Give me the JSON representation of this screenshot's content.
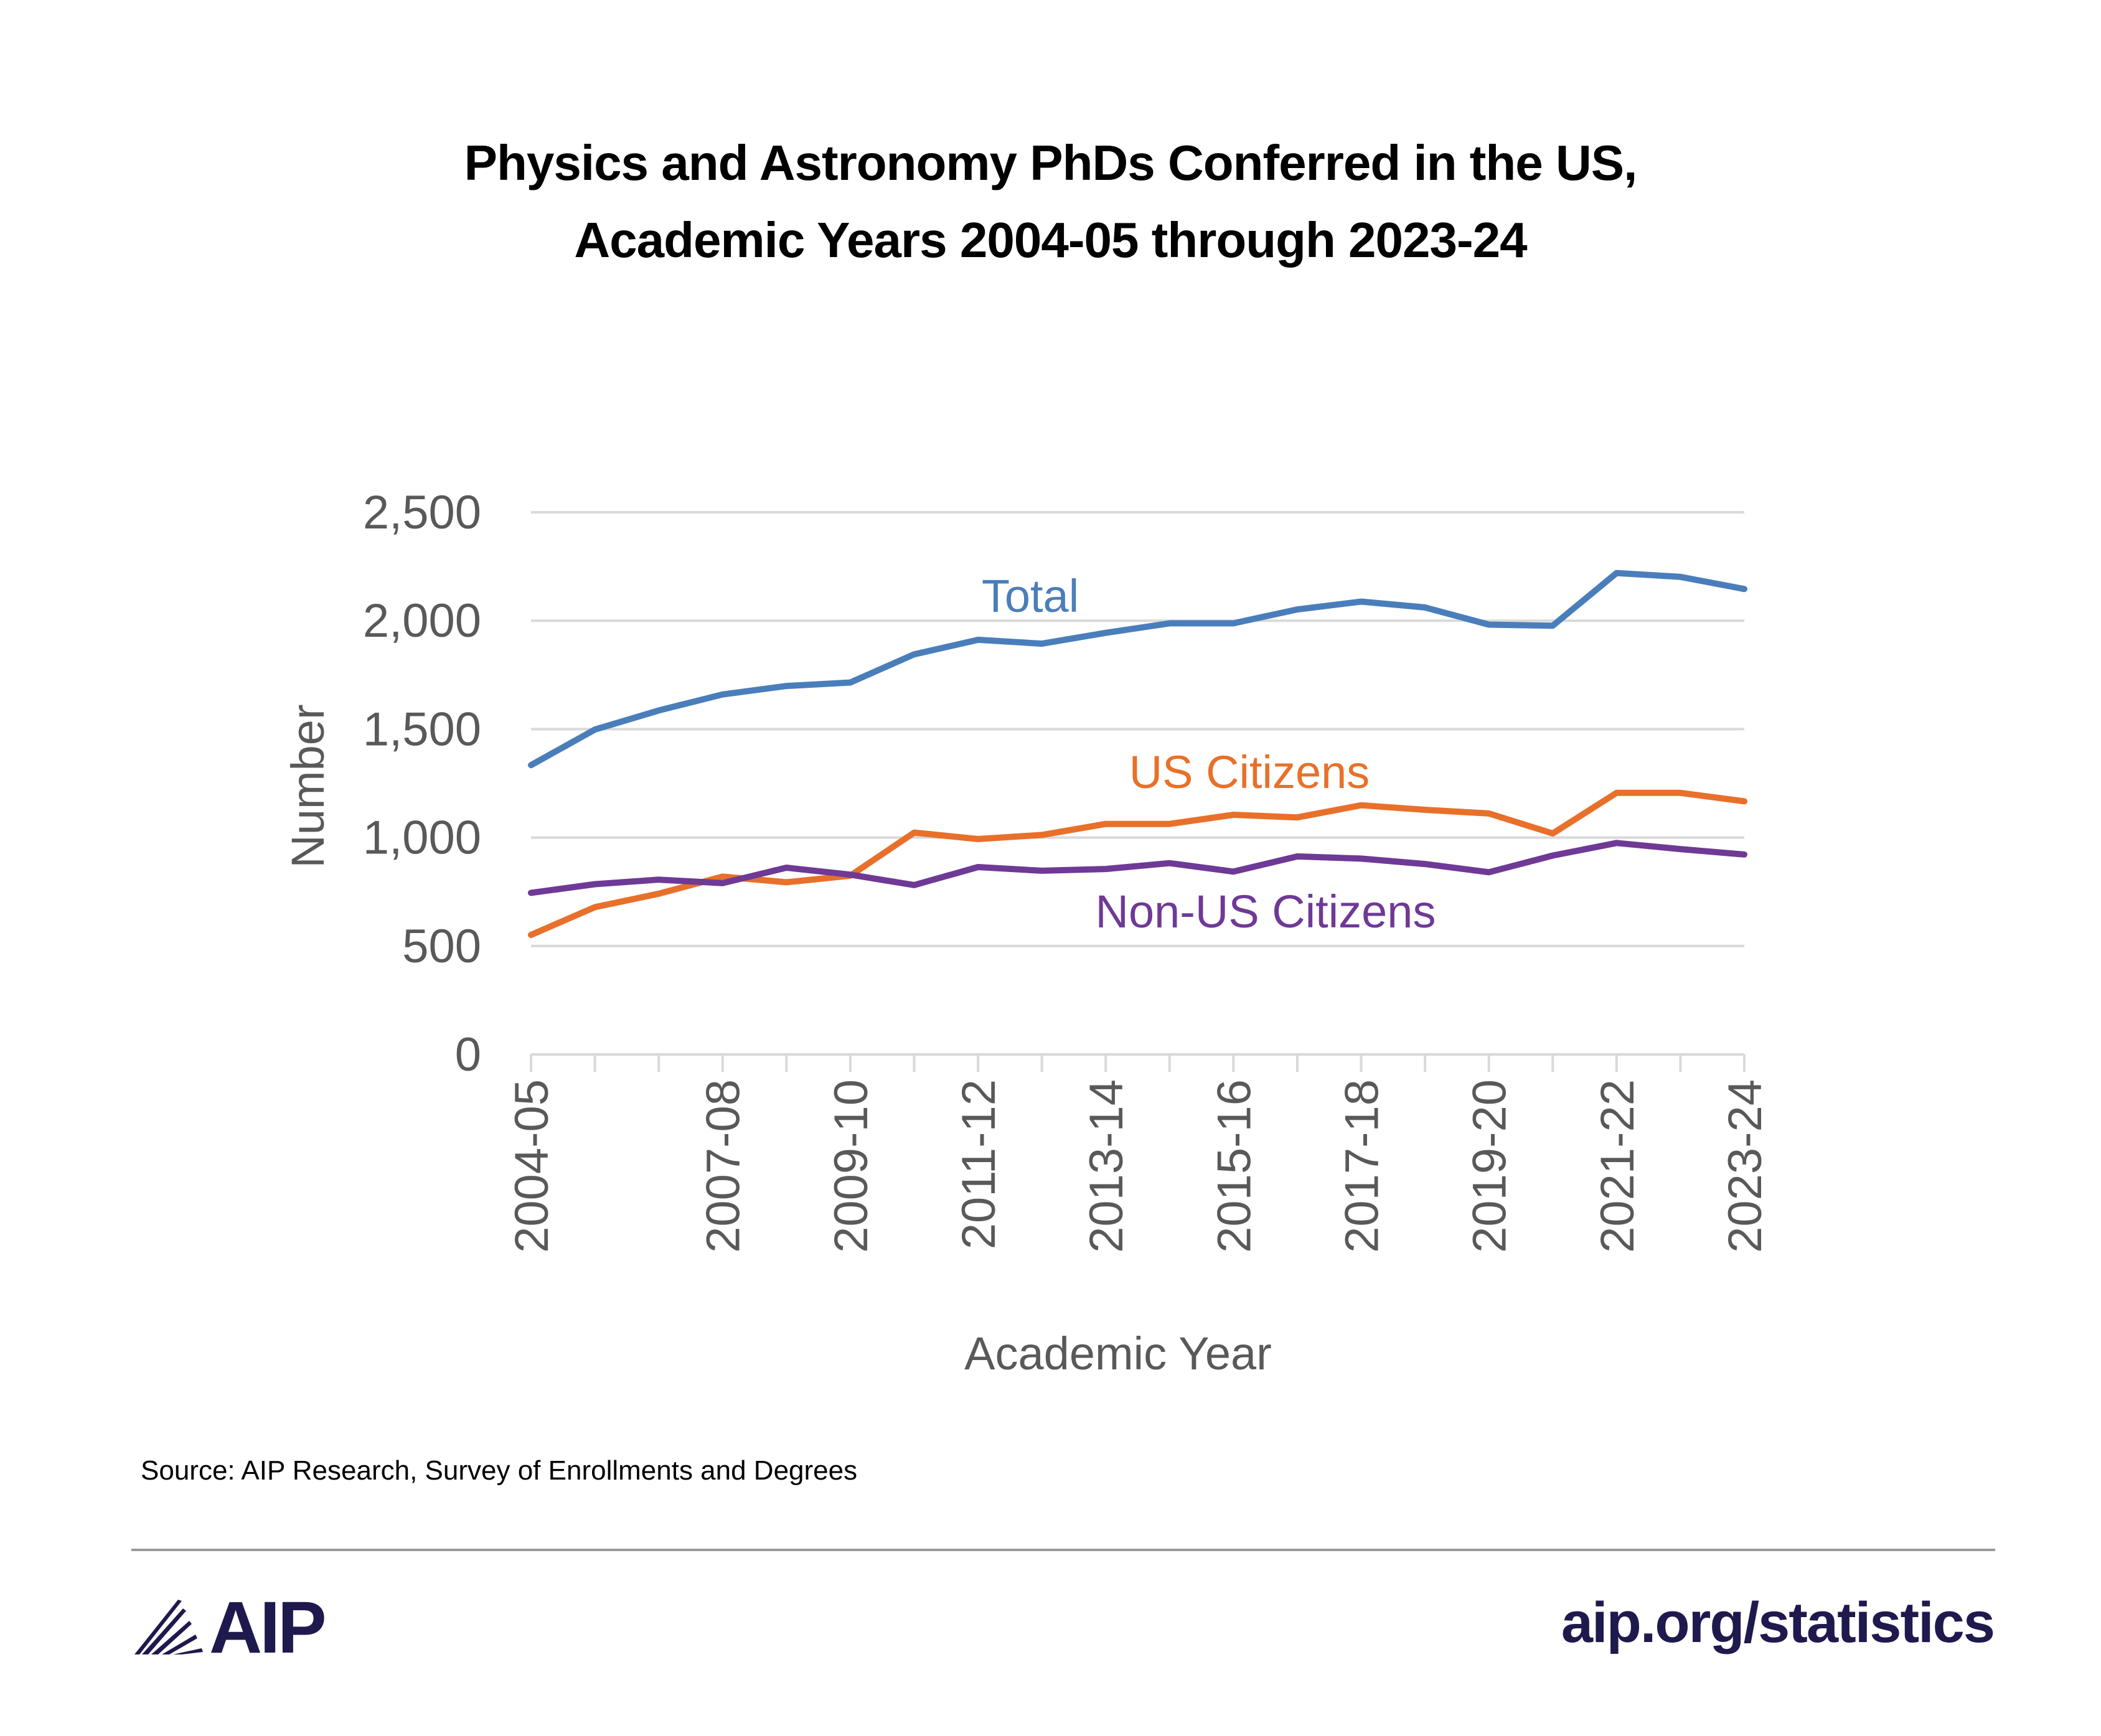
{
  "title_lines": [
    "Physics and Astronomy PhDs Conferred in the US,",
    "Academic Years 2004-05 through 2023-24"
  ],
  "source": "Source: AIP Research, Survey of Enrollments and Degrees",
  "footer": {
    "logo_text": "AIP",
    "url": "aip.org/statistics"
  },
  "colors": {
    "total": "#4a7ebb",
    "us": "#e8702a",
    "nonus": "#6f3996",
    "brand": "#1e1a4d",
    "grid": "#d9d9d9",
    "axis_text": "#595959"
  },
  "chart_data": {
    "type": "line",
    "xlabel": "Academic Year",
    "ylabel": "Number",
    "ylim": [
      0,
      2500
    ],
    "yticks": [
      "0",
      "500",
      "1,000",
      "1,500",
      "2,000",
      "2,500"
    ],
    "grid": true,
    "categories": [
      "2004-05",
      "2005-06",
      "2006-07",
      "2007-08",
      "2008-09",
      "2009-10",
      "2010-11",
      "2011-12",
      "2012-13",
      "2013-14",
      "2014-15",
      "2015-16",
      "2016-17",
      "2017-18",
      "2018-19",
      "2019-20",
      "2020-21",
      "2021-22",
      "2022-23",
      "2023-24"
    ],
    "xtick_labels": [
      "2004-05",
      "",
      "",
      "2007-08",
      "",
      "2009-10",
      "",
      "2011-12",
      "",
      "2013-14",
      "",
      "2015-16",
      "",
      "2017-18",
      "",
      "2019-20",
      "",
      "2021-22",
      "",
      "2023-24"
    ],
    "series": [
      {
        "name": "Total",
        "color": "#4a7ebb",
        "values": [
          1334,
          1498,
          1586,
          1660,
          1699,
          1715,
          1845,
          1912,
          1894,
          1944,
          1988,
          1988,
          2052,
          2088,
          2061,
          1982,
          1977,
          2220,
          2202,
          2146
        ]
      },
      {
        "name": "US Citizens",
        "color": "#e8702a",
        "values": [
          551,
          679,
          741,
          820,
          794,
          824,
          1023,
          993,
          1012,
          1063,
          1063,
          1105,
          1093,
          1149,
          1128,
          1111,
          1019,
          1206,
          1206,
          1167
        ]
      },
      {
        "name": "Non-US Citizens",
        "color": "#6f3996",
        "values": [
          745,
          785,
          806,
          790,
          861,
          829,
          781,
          864,
          847,
          855,
          882,
          843,
          913,
          903,
          878,
          840,
          917,
          975,
          947,
          922
        ]
      }
    ]
  }
}
